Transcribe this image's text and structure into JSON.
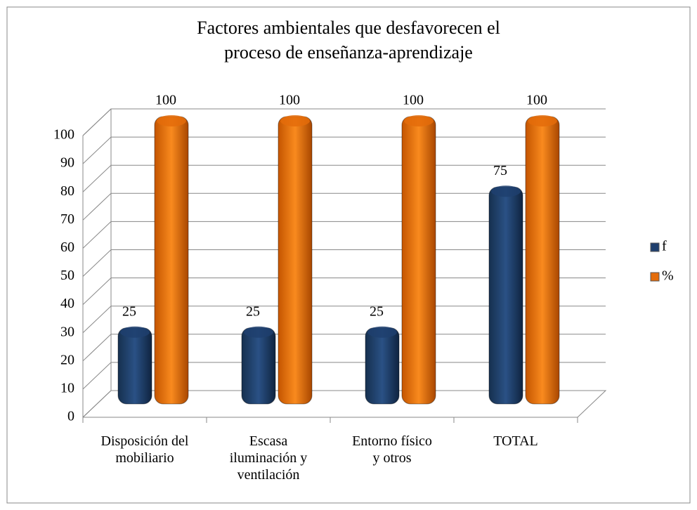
{
  "chart_data": {
    "type": "bar3d",
    "title": "Factores ambientales que desfavorecen el proceso de enseñanza-aprendizaje",
    "categories": [
      "Disposición del mobiliario",
      "Escasa iluminación y ventilación",
      "Entorno físico y otros",
      "TOTAL"
    ],
    "series": [
      {
        "name": "f",
        "color": "#1f3f6e",
        "values": [
          25,
          25,
          25,
          75
        ]
      },
      {
        "name": "%",
        "color": "#e46c0a",
        "values": [
          100,
          100,
          100,
          100
        ]
      }
    ],
    "ylim": [
      0,
      100
    ],
    "yticks": [
      0,
      10,
      20,
      30,
      40,
      50,
      60,
      70,
      80,
      90,
      100
    ],
    "grid": true,
    "legend": "right"
  }
}
